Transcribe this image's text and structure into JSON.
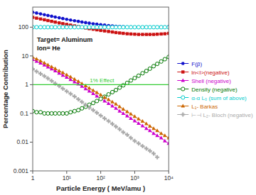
{
  "chart_data": {
    "type": "line",
    "xlabel": "Particle Energy ( MeV/amu )",
    "ylabel": "Percentage Contribution",
    "log": true,
    "grid": false,
    "legend": "right",
    "annotations": [
      "Target= Aluminum",
      "Ion= He"
    ],
    "hlines": [
      {
        "y": 1,
        "label": "1% Effect",
        "color": "#33cc33"
      }
    ],
    "xlim": [
      1,
      10000
    ],
    "xticks": [
      1,
      {
        "value": 10,
        "label": "10¹"
      },
      {
        "value": 100,
        "label": "10²"
      },
      {
        "value": 1000,
        "label": "10³"
      },
      {
        "value": 10000,
        "label": "10⁴"
      }
    ],
    "ylim": [
      0.001,
      500
    ],
    "yticks": [
      0.001,
      0.01,
      0.1,
      1,
      10,
      100
    ],
    "x": [
      1,
      1.3,
      1.7,
      2.2,
      2.8,
      3.6,
      4.6,
      6,
      7.7,
      10,
      13,
      17,
      22,
      28,
      36,
      46,
      60,
      77,
      100,
      130,
      170,
      220,
      280,
      360,
      460,
      600,
      770,
      1000,
      1300,
      1700,
      2200,
      2800,
      3600,
      4600,
      6000,
      7700,
      10000
    ],
    "series": [
      {
        "name": "F(β)",
        "color": "#1111cc",
        "marker": "circle",
        "values": [
          330,
          310,
          290,
          272,
          255,
          240,
          225,
          212,
          200,
          188,
          177,
          168,
          159,
          151,
          144,
          138,
          132,
          127,
          122,
          118,
          114,
          111,
          108,
          106,
          104,
          102,
          101,
          100,
          99,
          99,
          99,
          99,
          99,
          100,
          101,
          102,
          104
        ]
      },
      {
        "name": "ln<I>(negative)",
        "color": "#cc1111",
        "marker": "square",
        "values": [
          220,
          206,
          193,
          181,
          170,
          160,
          150,
          141,
          133,
          125,
          118,
          111,
          105,
          99,
          94,
          89,
          85,
          81,
          77,
          74,
          71,
          68,
          65,
          63,
          61,
          59,
          58,
          57,
          56,
          56,
          56,
          56,
          56,
          57,
          58,
          59,
          61
        ]
      },
      {
        "name": "Shell (negative)",
        "color": "#cc00cc",
        "marker": "triangle",
        "values": [
          7.5,
          6.5,
          5.6,
          4.8,
          4.1,
          3.5,
          3.0,
          2.5,
          2.1,
          1.8,
          1.5,
          1.25,
          1.05,
          0.87,
          0.72,
          0.6,
          0.49,
          0.4,
          0.33,
          0.27,
          0.22,
          0.18,
          0.15,
          0.12,
          0.1,
          0.082,
          0.067,
          0.055,
          0.045,
          0.037,
          0.03,
          0.025,
          0.02,
          0.017,
          0.014,
          0.011,
          0.009
        ]
      },
      {
        "name": "Density (negative)",
        "color": "#007700",
        "marker": "open-circle",
        "values": [
          0.12,
          0.11,
          0.11,
          0.1,
          0.1,
          0.1,
          0.1,
          0.1,
          0.1,
          0.1,
          0.11,
          0.12,
          0.13,
          0.15,
          0.17,
          0.2,
          0.23,
          0.27,
          0.32,
          0.38,
          0.46,
          0.55,
          0.65,
          0.79,
          0.95,
          1.15,
          1.4,
          1.7,
          2.05,
          2.5,
          3.0,
          3.6,
          4.4,
          5.3,
          6.4,
          7.7,
          9.2
        ]
      },
      {
        "name": "α-α L₀ (sum of above)",
        "color": "#00cccc",
        "marker": "open-circle",
        "values": [
          100,
          100,
          100,
          100,
          100,
          100,
          100,
          100,
          100,
          100,
          100,
          100,
          100,
          100,
          100,
          100,
          100,
          100,
          100,
          100,
          100,
          100,
          100,
          100,
          100,
          100,
          100,
          100,
          100,
          100,
          100,
          100,
          100,
          100,
          100,
          100,
          100
        ]
      },
      {
        "name": "L₁- Barkas",
        "color": "#cc6600",
        "marker": "triangle",
        "values": [
          9.0,
          7.8,
          6.7,
          5.7,
          4.9,
          4.2,
          3.6,
          3.0,
          2.6,
          2.2,
          1.85,
          1.55,
          1.3,
          1.09,
          0.91,
          0.76,
          0.63,
          0.53,
          0.44,
          0.36,
          0.3,
          0.25,
          0.21,
          0.17,
          0.14,
          0.115,
          0.095,
          0.078,
          0.064,
          0.053,
          0.044,
          0.036,
          0.03,
          0.025,
          0.02,
          0.017,
          0.014
        ]
      },
      {
        "name": "⊢⊣ L₂- Bloch (negative)",
        "color": "#aaaaaa",
        "marker": "plus",
        "values": [
          3.5,
          2.9,
          2.4,
          2.0,
          1.65,
          1.35,
          1.1,
          0.9,
          0.73,
          0.59,
          0.48,
          0.39,
          0.31,
          0.25,
          0.2,
          0.16,
          0.13,
          0.105,
          0.084,
          0.067,
          0.054,
          0.043,
          0.035,
          0.028,
          0.022,
          0.018,
          0.014,
          0.011,
          0.009,
          0.0073,
          0.006,
          0.005,
          0.004,
          0.003,
          null,
          null,
          null
        ]
      }
    ]
  }
}
